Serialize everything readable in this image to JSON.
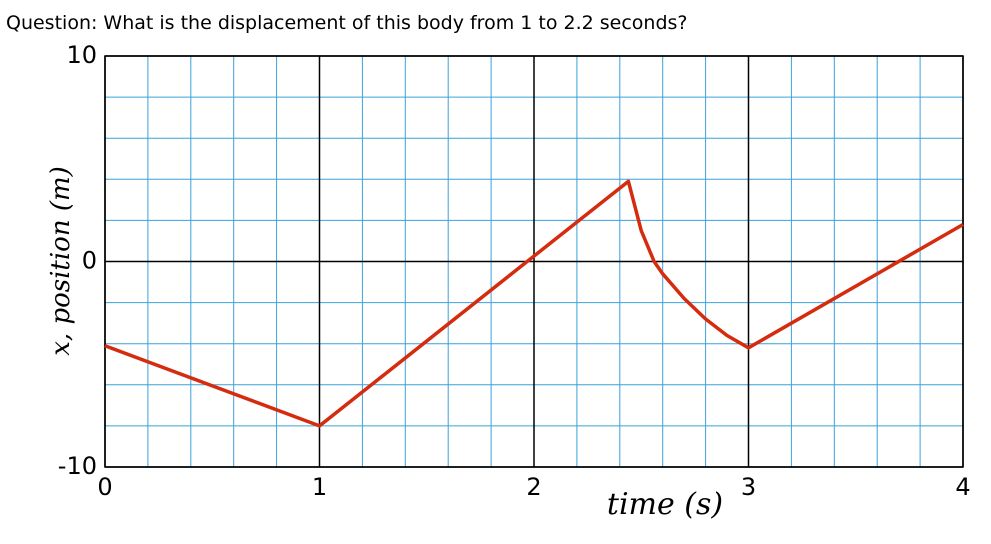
{
  "question": "Question: What is the displacement of this body from 1 to 2.2 seconds?",
  "chart_data": {
    "type": "line",
    "x_label": "time (s)",
    "y_label": "x, position (m)",
    "x": [
      0,
      1,
      2.44,
      2.5,
      2.56,
      2.6,
      2.7,
      2.8,
      2.9,
      3,
      4
    ],
    "series": [
      {
        "color": "#d52b0e",
        "values": [
          -4.1,
          -8,
          3.9,
          1.5,
          0,
          -0.6,
          -1.8,
          -2.8,
          -3.6,
          -4.2,
          1.8
        ]
      }
    ],
    "xlim": [
      0,
      4
    ],
    "ylim": [
      -10,
      10
    ],
    "xticks": [
      0,
      1,
      2,
      3,
      4
    ],
    "yticks": [
      -10,
      0,
      10
    ],
    "grid": true,
    "minor_grid": {
      "x_step": 0.2,
      "y_step": 2,
      "color": "#3ca0dc"
    }
  }
}
